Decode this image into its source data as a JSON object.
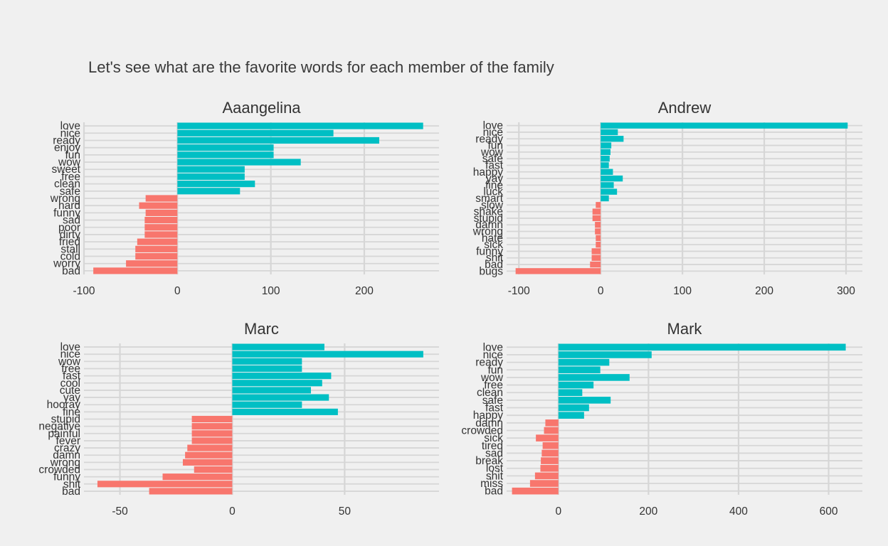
{
  "title": "Let's see what are the favorite words for each member of the family",
  "colors": {
    "positive": "#00bfc4",
    "negative": "#f8766d",
    "grid": "#d6d6d6",
    "background": "#f0f0f0"
  },
  "chart_data": [
    {
      "type": "bar",
      "orientation": "horizontal",
      "title": "Aaangelina",
      "grid": true,
      "xlim": [
        -100,
        280
      ],
      "xticks": [
        -100,
        0,
        100,
        200
      ],
      "xtick_labels": [
        "-100",
        "0",
        "100",
        "200"
      ],
      "categories": [
        "love",
        "nice",
        "ready",
        "enjoy",
        "fun",
        "wow",
        "sweet",
        "free",
        "clean",
        "safe",
        "wrong",
        "hard",
        "funny",
        "sad",
        "poor",
        "dirty",
        "fried",
        "stall",
        "cold",
        "worry",
        "bad"
      ],
      "values": [
        263,
        167,
        216,
        103,
        103,
        132,
        72,
        72,
        83,
        67,
        -34,
        -41,
        -34,
        -35,
        -35,
        -35,
        -43,
        -45,
        -45,
        -55,
        -90
      ]
    },
    {
      "type": "bar",
      "orientation": "horizontal",
      "title": "Andrew",
      "grid": true,
      "xlim": [
        -115,
        320
      ],
      "xticks": [
        -100,
        0,
        100,
        200,
        300
      ],
      "xtick_labels": [
        "-100",
        "0",
        "100",
        "200",
        "300"
      ],
      "categories": [
        "love",
        "nice",
        "ready",
        "fun",
        "wow",
        "safe",
        "fast",
        "happy",
        "yay",
        "fine",
        "luck",
        "smart",
        "slow",
        "shake",
        "stupid",
        "damn",
        "wrong",
        "hate",
        "sick",
        "funny",
        "shit",
        "bad",
        "bugs"
      ],
      "values": [
        302,
        21,
        28,
        13,
        12,
        11,
        10,
        15,
        27,
        16,
        20,
        10,
        -6,
        -10,
        -10,
        -7,
        -7,
        -6,
        -6,
        -11,
        -11,
        -13,
        -104
      ]
    },
    {
      "type": "bar",
      "orientation": "horizontal",
      "title": "Marc",
      "grid": true,
      "xlim": [
        -66,
        92
      ],
      "xticks": [
        -50,
        0,
        50
      ],
      "xtick_labels": [
        "-50",
        "0",
        "50"
      ],
      "categories": [
        "love",
        "nice",
        "wow",
        "free",
        "fast",
        "cool",
        "cute",
        "yay",
        "hooray",
        "fine",
        "stupid",
        "negative",
        "painful",
        "fever",
        "crazy",
        "damn",
        "wrong",
        "crowded",
        "funny",
        "shit",
        "bad"
      ],
      "values": [
        41,
        85,
        31,
        31,
        44,
        40,
        35,
        43,
        31,
        47,
        -18,
        -18,
        -18,
        -18,
        -20,
        -21,
        -22,
        -17,
        -31,
        -60,
        -37
      ]
    },
    {
      "type": "bar",
      "orientation": "horizontal",
      "title": "Mark",
      "grid": true,
      "xlim": [
        -115,
        675
      ],
      "xticks": [
        0,
        200,
        400,
        600
      ],
      "xtick_labels": [
        "0",
        "200",
        "400",
        "600"
      ],
      "categories": [
        "love",
        "nice",
        "ready",
        "fun",
        "wow",
        "free",
        "clean",
        "safe",
        "fast",
        "happy",
        "damn",
        "crowded",
        "sick",
        "tired",
        "sad",
        "break",
        "lost",
        "shit",
        "miss",
        "bad"
      ],
      "values": [
        638,
        207,
        113,
        93,
        158,
        78,
        53,
        116,
        68,
        57,
        -29,
        -32,
        -50,
        -35,
        -37,
        -39,
        -40,
        -52,
        -63,
        -103
      ]
    }
  ]
}
